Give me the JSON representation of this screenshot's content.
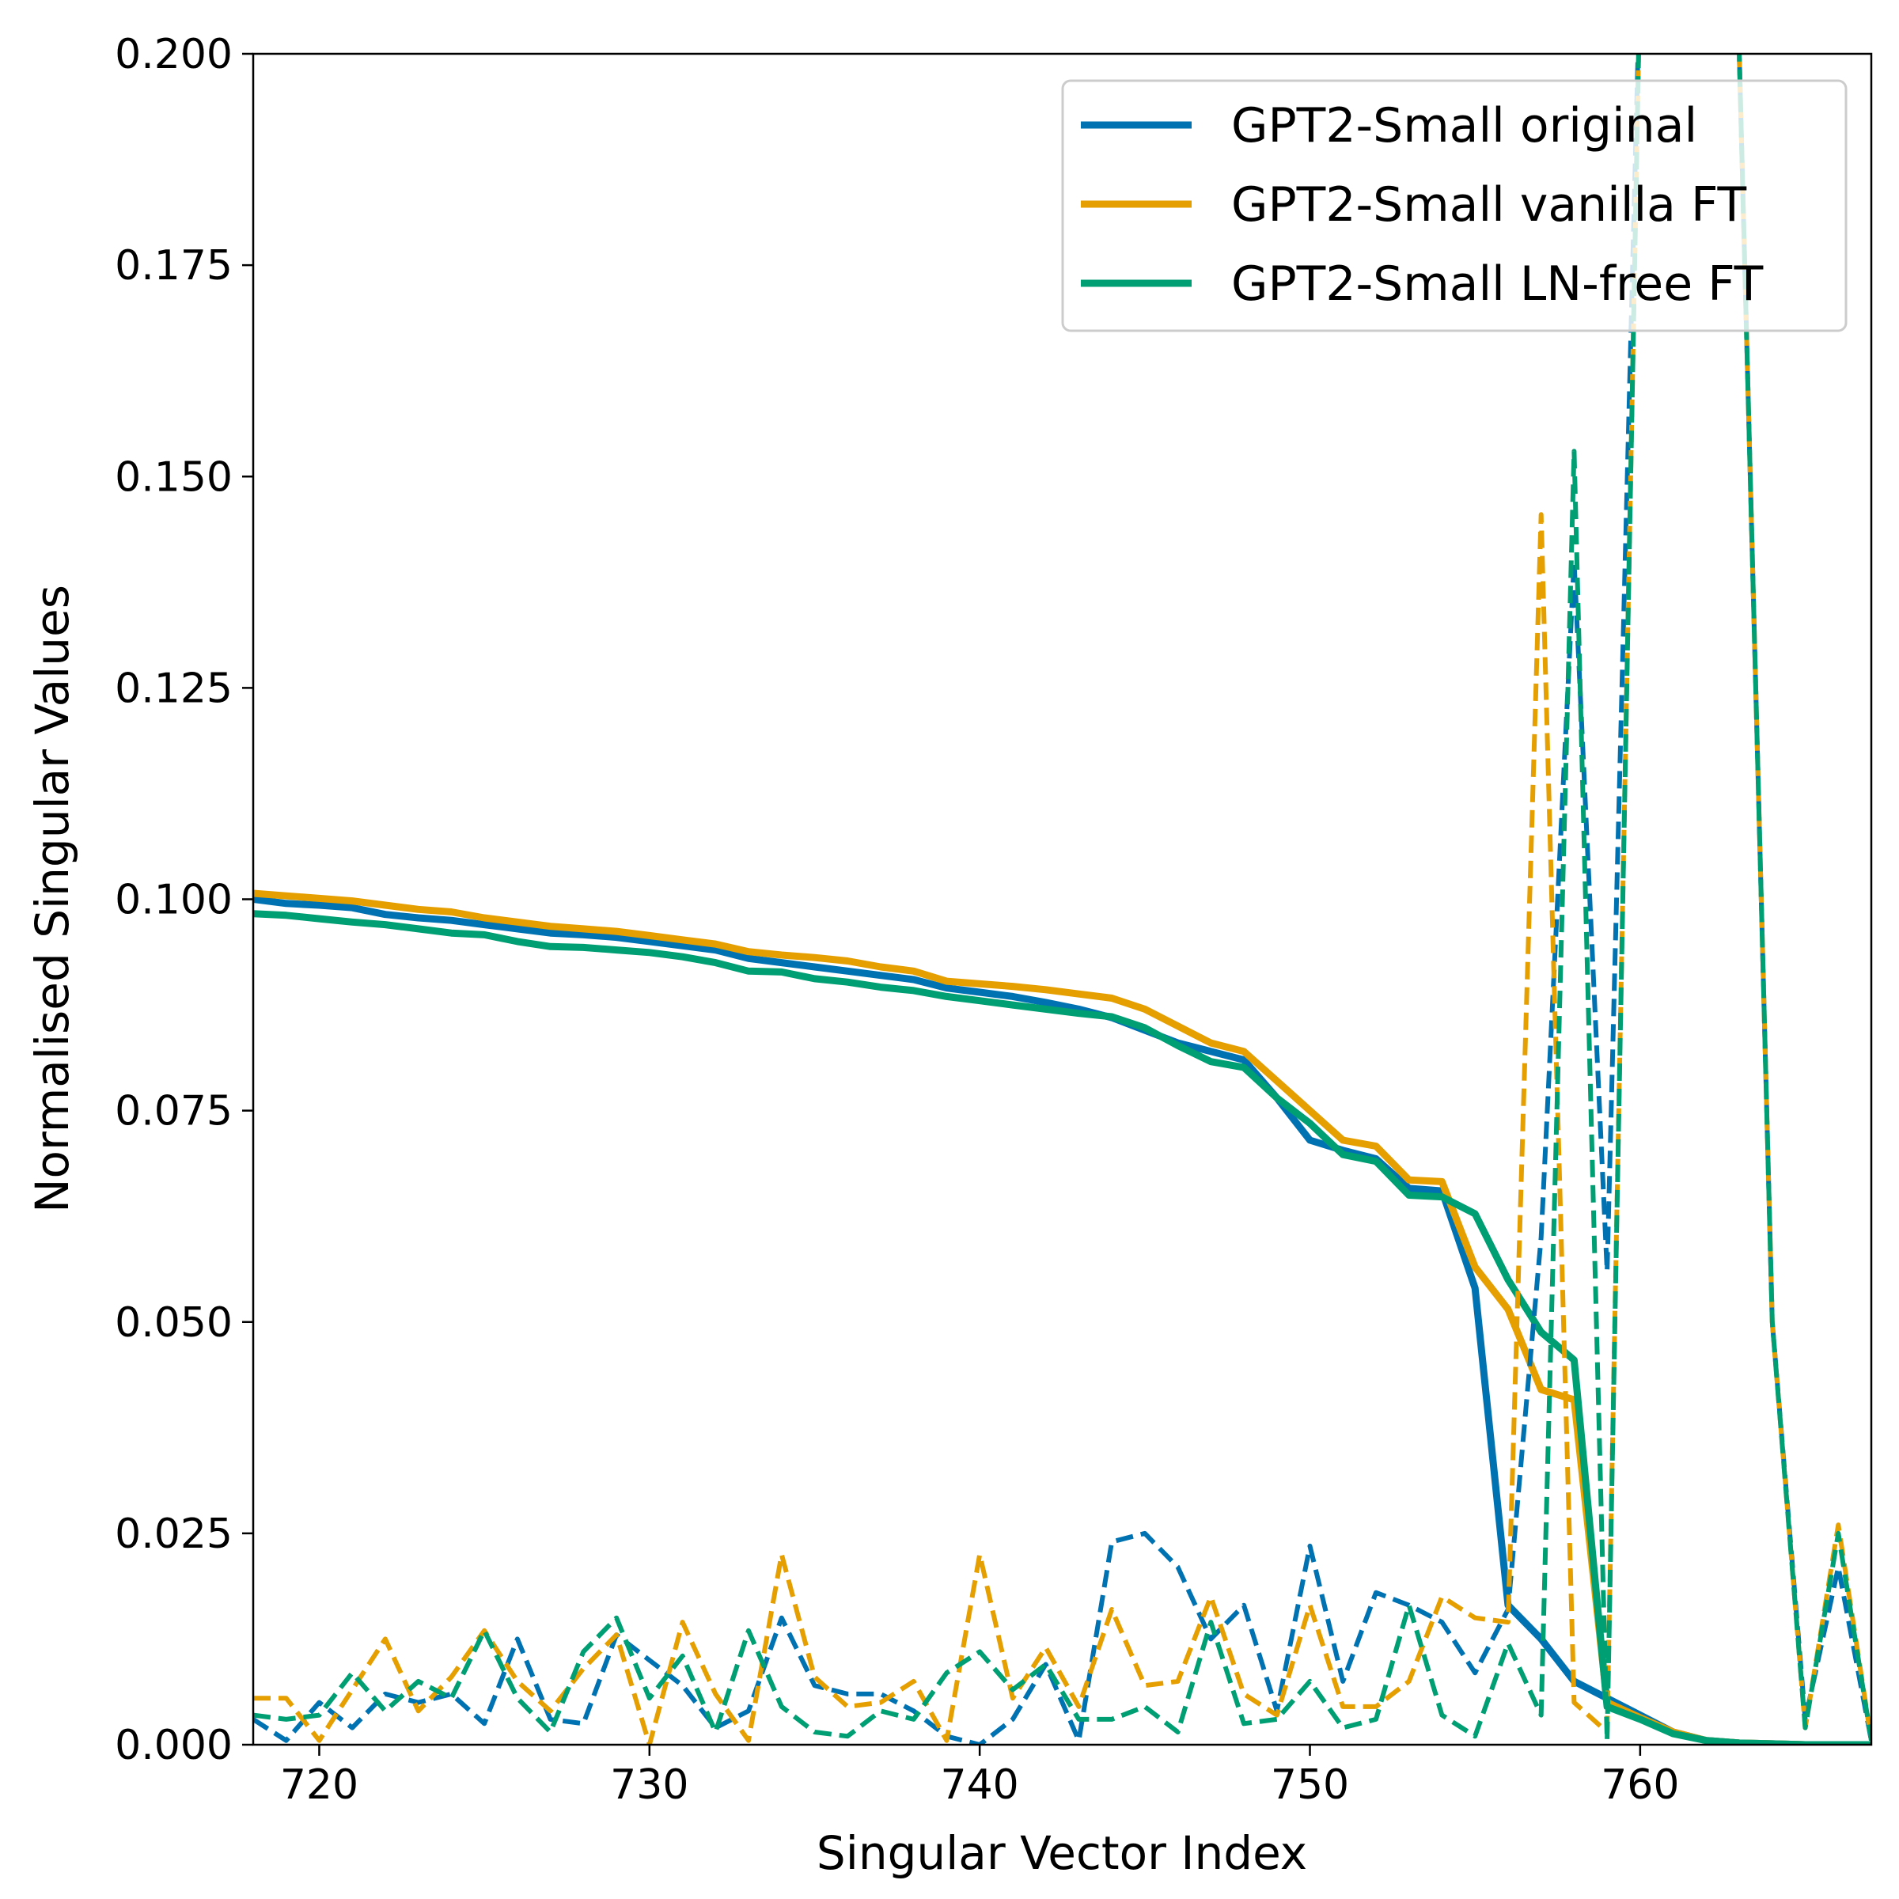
{
  "chart_data": {
    "type": "line",
    "title": "",
    "xlabel": "Singular Vector Index",
    "ylabel": "Normalised Singular Values",
    "xlim": [
      718,
      767
    ],
    "ylim": [
      0.0,
      0.2
    ],
    "xticks": [
      720,
      730,
      740,
      750,
      760
    ],
    "xtick_labels": [
      "720",
      "730",
      "740",
      "750",
      "760"
    ],
    "yticks": [
      0.0,
      0.025,
      0.05,
      0.075,
      0.1,
      0.125,
      0.15,
      0.175,
      0.2
    ],
    "ytick_labels": [
      "0.000",
      "0.025",
      "0.050",
      "0.075",
      "0.100",
      "0.125",
      "0.150",
      "0.175",
      "0.200"
    ],
    "grid": false,
    "legend_position": "top-right",
    "x": [
      718,
      719,
      720,
      721,
      722,
      723,
      724,
      725,
      726,
      727,
      728,
      729,
      730,
      731,
      732,
      733,
      734,
      735,
      736,
      737,
      738,
      739,
      740,
      741,
      742,
      743,
      744,
      745,
      746,
      747,
      748,
      749,
      750,
      751,
      752,
      753,
      754,
      755,
      756,
      757,
      758,
      759,
      760,
      761,
      762,
      763,
      764,
      765,
      766,
      767
    ],
    "series": [
      {
        "name": "GPT2-Small original",
        "color": "#0072b2",
        "style": "solid",
        "values": [
          0.1,
          0.0995,
          0.0993,
          0.099,
          0.0982,
          0.0978,
          0.0975,
          0.097,
          0.0965,
          0.096,
          0.0958,
          0.0955,
          0.095,
          0.0945,
          0.094,
          0.093,
          0.0925,
          0.092,
          0.0915,
          0.091,
          0.0905,
          0.0895,
          0.089,
          0.0885,
          0.0878,
          0.087,
          0.086,
          0.0845,
          0.083,
          0.082,
          0.081,
          0.0765,
          0.0715,
          0.0703,
          0.0693,
          0.0658,
          0.0655,
          0.054,
          0.0165,
          0.0125,
          0.0075,
          0.0055,
          0.0035,
          0.0015,
          0.0005,
          0.0002,
          0.0001,
          0.0,
          0.0,
          0.0
        ]
      },
      {
        "name": "GPT2-Small vanilla FT",
        "color": "#e69f00",
        "style": "solid",
        "values": [
          0.1007,
          0.1004,
          0.1001,
          0.0998,
          0.0993,
          0.0988,
          0.0985,
          0.0978,
          0.0973,
          0.0968,
          0.0965,
          0.0962,
          0.0957,
          0.0952,
          0.0947,
          0.0938,
          0.0934,
          0.0931,
          0.0927,
          0.092,
          0.0915,
          0.0903,
          0.09,
          0.0897,
          0.0893,
          0.0888,
          0.0883,
          0.087,
          0.085,
          0.083,
          0.082,
          0.0785,
          0.075,
          0.0715,
          0.0708,
          0.0668,
          0.0666,
          0.0565,
          0.0515,
          0.042,
          0.0408,
          0.005,
          0.0032,
          0.0015,
          0.0005,
          0.0002,
          0.0001,
          0.0,
          0.0,
          0.0
        ]
      },
      {
        "name": "GPT2-Small LN-free FT",
        "color": "#009e73",
        "style": "solid",
        "values": [
          0.0983,
          0.0981,
          0.0977,
          0.0973,
          0.097,
          0.0965,
          0.096,
          0.0958,
          0.095,
          0.0944,
          0.0943,
          0.094,
          0.0937,
          0.0932,
          0.0925,
          0.0915,
          0.0914,
          0.0906,
          0.0902,
          0.0896,
          0.0892,
          0.0885,
          0.088,
          0.0875,
          0.087,
          0.0865,
          0.0861,
          0.0848,
          0.0827,
          0.0808,
          0.0801,
          0.0765,
          0.0735,
          0.0698,
          0.069,
          0.065,
          0.0648,
          0.0628,
          0.055,
          0.0488,
          0.0455,
          0.0045,
          0.003,
          0.0013,
          0.0005,
          0.0002,
          0.0001,
          0.0,
          0.0,
          0.0
        ]
      },
      {
        "color": "#0072b2",
        "style": "dashed",
        "values": [
          0.003,
          0.0005,
          0.005,
          0.002,
          0.006,
          0.005,
          0.006,
          0.0025,
          0.0125,
          0.003,
          0.0025,
          0.013,
          0.01,
          0.007,
          0.002,
          0.004,
          0.015,
          0.007,
          0.006,
          0.006,
          0.004,
          0.001,
          0.0,
          0.003,
          0.0095,
          0.0005,
          0.024,
          0.025,
          0.021,
          0.0125,
          0.0165,
          0.004,
          0.0235,
          0.0075,
          0.018,
          0.0165,
          0.0145,
          0.0085,
          0.016,
          0.06,
          0.14,
          0.056,
          0.21,
          0.25,
          0.25,
          0.2,
          0.05,
          0.003,
          0.021,
          0.0005
        ]
      },
      {
        "color": "#e69f00",
        "style": "dashed",
        "values": [
          0.0055,
          0.0055,
          0.0005,
          0.0065,
          0.0125,
          0.004,
          0.008,
          0.0135,
          0.0075,
          0.004,
          0.009,
          0.013,
          0.0,
          0.0145,
          0.006,
          0.0005,
          0.0225,
          0.008,
          0.0045,
          0.005,
          0.0075,
          0.0005,
          0.0225,
          0.0055,
          0.0115,
          0.0045,
          0.016,
          0.007,
          0.0075,
          0.0175,
          0.006,
          0.0035,
          0.0165,
          0.0045,
          0.0045,
          0.0075,
          0.0175,
          0.015,
          0.0145,
          0.1455,
          0.005,
          0.0015,
          0.21,
          0.25,
          0.25,
          0.2,
          0.05,
          0.002,
          0.026,
          0.0005
        ]
      },
      {
        "color": "#009e73",
        "style": "dashed",
        "values": [
          0.0035,
          0.003,
          0.0035,
          0.0085,
          0.004,
          0.0075,
          0.0055,
          0.0135,
          0.0055,
          0.0015,
          0.011,
          0.015,
          0.0055,
          0.0105,
          0.0015,
          0.0135,
          0.0045,
          0.0015,
          0.001,
          0.004,
          0.003,
          0.0085,
          0.011,
          0.0065,
          0.0095,
          0.003,
          0.003,
          0.0045,
          0.0015,
          0.0145,
          0.0025,
          0.003,
          0.0075,
          0.002,
          0.003,
          0.0165,
          0.0035,
          0.001,
          0.012,
          0.0035,
          0.153,
          0.0005,
          0.21,
          0.25,
          0.25,
          0.2,
          0.05,
          0.002,
          0.025,
          0.0005
        ]
      }
    ]
  }
}
